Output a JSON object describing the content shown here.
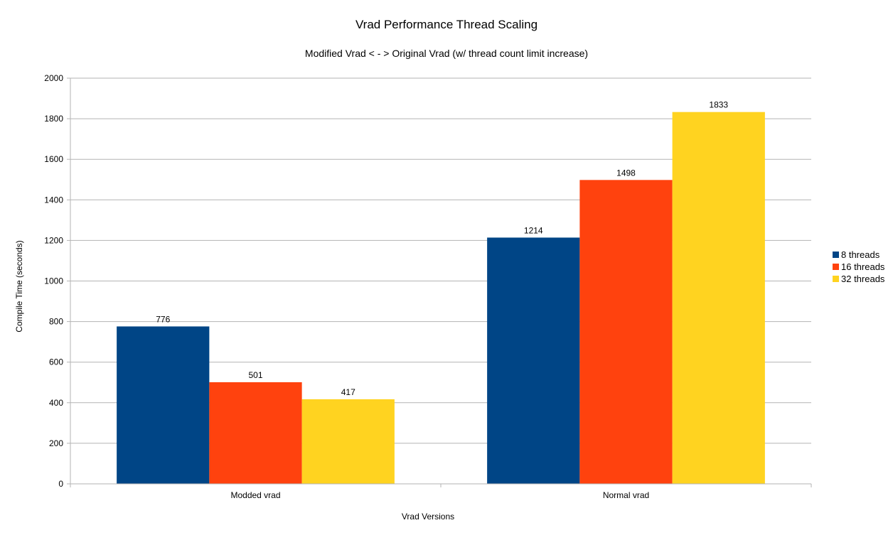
{
  "chart_data": {
    "type": "bar",
    "title": "Vrad Performance Thread Scaling",
    "subtitle": "Modified Vrad < - > Original Vrad (w/ thread count limit increase)",
    "xlabel": "Vrad Versions",
    "ylabel": "Compile Time (seconds)",
    "categories": [
      "Modded vrad",
      "Normal vrad"
    ],
    "series": [
      {
        "name": "8 threads",
        "color": "#004586",
        "values": [
          776,
          1214
        ]
      },
      {
        "name": "16 threads",
        "color": "#ff420e",
        "values": [
          501,
          1498
        ]
      },
      {
        "name": "32 threads",
        "color": "#ffd320",
        "values": [
          417,
          1833
        ]
      }
    ],
    "ylim": [
      0,
      2000
    ],
    "yticks": [
      0,
      200,
      400,
      600,
      800,
      1000,
      1200,
      1400,
      1600,
      1800,
      2000
    ],
    "grid": true,
    "legend_position": "right",
    "colors": {
      "grid": "#b3b3b3",
      "axis": "#b3b3b3"
    }
  }
}
